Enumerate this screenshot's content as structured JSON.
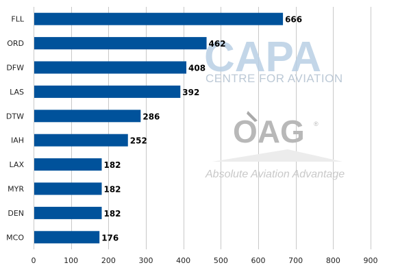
{
  "chart_data": {
    "type": "bar",
    "orientation": "horizontal",
    "title": "",
    "xlabel": "",
    "ylabel": "",
    "categories": [
      "FLL",
      "ORD",
      "DFW",
      "LAS",
      "DTW",
      "IAH",
      "LAX",
      "MYR",
      "DEN",
      "MCO"
    ],
    "values": [
      666,
      462,
      408,
      392,
      286,
      252,
      182,
      182,
      182,
      176
    ],
    "xlim": [
      0,
      900
    ],
    "xticks": [
      0,
      100,
      200,
      300,
      400,
      500,
      600,
      700,
      800,
      900
    ],
    "grid": "vertical",
    "legend": "none",
    "bar_color": "#00529b",
    "data_labels": true
  },
  "watermarks": {
    "capa_logo": "CAPA",
    "capa_subtitle": "CENTRE FOR AVIATION",
    "oag_logo": "OAG",
    "oag_registered": "®",
    "oag_tagline": "Absolute Aviation Advantage"
  }
}
